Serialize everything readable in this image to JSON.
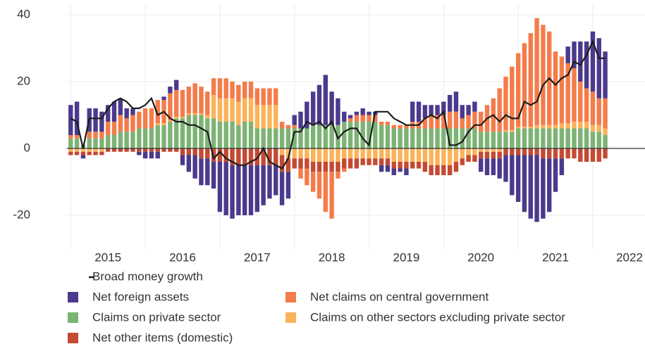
{
  "chart_data": {
    "type": "bar",
    "x": [
      2015,
      2015.0833,
      2015.1667,
      2015.25,
      2015.3333,
      2015.4167,
      2015.5,
      2015.5833,
      2015.6667,
      2015.75,
      2015.8333,
      2015.9167,
      2016,
      2016.0833,
      2016.1667,
      2016.25,
      2016.3333,
      2016.4167,
      2016.5,
      2016.5833,
      2016.6667,
      2016.75,
      2016.8333,
      2016.9167,
      2017,
      2017.0833,
      2017.1667,
      2017.25,
      2017.3333,
      2017.4167,
      2017.5,
      2017.5833,
      2017.6667,
      2017.75,
      2017.8333,
      2017.9167,
      2018,
      2018.0833,
      2018.1667,
      2018.25,
      2018.3333,
      2018.4167,
      2018.5,
      2018.5833,
      2018.6667,
      2018.75,
      2018.8333,
      2018.9167,
      2019,
      2019.0833,
      2019.1667,
      2019.25,
      2019.3333,
      2019.4167,
      2019.5,
      2019.5833,
      2019.6667,
      2019.75,
      2019.8333,
      2019.9167,
      2020,
      2020.0833,
      2020.1667,
      2020.25,
      2020.3333,
      2020.4167,
      2020.5,
      2020.5833,
      2020.6667,
      2020.75,
      2020.8333,
      2020.9167,
      2021,
      2021.0833,
      2021.1667,
      2021.25,
      2021.3333,
      2021.4167,
      2021.5,
      2021.5833,
      2021.6667,
      2021.75,
      2021.8333,
      2021.9167,
      2022,
      2022.0833,
      2022.1667
    ],
    "series": [
      {
        "name": "Net foreign assets",
        "color": "#4b3a8c",
        "values": [
          9,
          10,
          -1,
          7,
          7,
          6,
          5,
          6,
          5,
          3,
          2,
          -1,
          -2,
          -2,
          -2,
          1,
          2,
          3,
          -3,
          -5,
          -7,
          -8,
          -8,
          -8,
          -15,
          -16,
          -16,
          -15,
          -15,
          -15,
          -14,
          -12,
          -10,
          -9,
          -10,
          -8,
          3,
          5,
          8,
          10,
          12,
          15,
          10,
          8,
          3,
          1,
          1,
          2,
          1,
          1,
          -2,
          -2,
          -2,
          -1,
          -2,
          6,
          6,
          4,
          3,
          3,
          4,
          5,
          6,
          4,
          3,
          3,
          -4,
          -5,
          -5,
          -6,
          -8,
          -12,
          -14,
          -17,
          -19,
          -20,
          -18,
          -16,
          -10,
          -5,
          5,
          8,
          12,
          14,
          18,
          18,
          14
        ]
      },
      {
        "name": "Net claims on central government",
        "color": "#f47c4a",
        "values": [
          1,
          1,
          0,
          2,
          2,
          2,
          4,
          4,
          5,
          4,
          5,
          5,
          6,
          6,
          7,
          7,
          8,
          8,
          8,
          8,
          9,
          8,
          7,
          5,
          6,
          6,
          5,
          5,
          5,
          5,
          5,
          5,
          5,
          5,
          2,
          1,
          1,
          -3,
          -5,
          -6,
          -8,
          -12,
          -14,
          -2,
          -1,
          1,
          2,
          2,
          2,
          2,
          1,
          1,
          1,
          1,
          1,
          2,
          2,
          3,
          4,
          4,
          4,
          5,
          5,
          3,
          4,
          5,
          6,
          8,
          10,
          13,
          16,
          19,
          22,
          25,
          28,
          32,
          30,
          28,
          22,
          20,
          18,
          16,
          12,
          10,
          10,
          8,
          9
        ]
      },
      {
        "name": "Claims on private sector",
        "color": "#7db375",
        "values": [
          3,
          3,
          1,
          3,
          3,
          3,
          4,
          4,
          5,
          5,
          5,
          6,
          6,
          6,
          7,
          7,
          8,
          9,
          9,
          10,
          10,
          10,
          9,
          9,
          8,
          8,
          8,
          7,
          8,
          8,
          6,
          6,
          6,
          6,
          6,
          6,
          6,
          6,
          6,
          7,
          7,
          7,
          7,
          7,
          8,
          8,
          8,
          8,
          8,
          8,
          7,
          7,
          6,
          6,
          6,
          6,
          6,
          6,
          6,
          6,
          6,
          6,
          6,
          6,
          6,
          6,
          5,
          5,
          5,
          5,
          5,
          5,
          6,
          6,
          6,
          6,
          6,
          6,
          6,
          6,
          6,
          6,
          6,
          6,
          5,
          5,
          4
        ]
      },
      {
        "name": "Claims on other sectors excluding private sector",
        "color": "#fbb35a",
        "values": [
          -1,
          -1,
          -1,
          -1,
          -1,
          -1,
          0,
          0,
          0,
          0,
          0,
          0,
          0,
          0,
          0.5,
          0.5,
          0.5,
          0.5,
          0.5,
          0.5,
          0.5,
          0.5,
          1,
          7,
          7,
          7,
          7,
          7,
          7,
          7,
          7,
          7,
          7,
          7,
          -2,
          -3,
          -3,
          -3,
          -3,
          -4,
          -4,
          -4,
          -4,
          -4,
          -3,
          -3,
          -3,
          -3,
          -3,
          -3,
          -3,
          -3,
          -4,
          -4,
          -4,
          -4,
          -4,
          -4,
          -5,
          -5,
          -5,
          -5,
          -4,
          -3,
          -2,
          -2,
          -1,
          -1,
          -1,
          -1,
          0.5,
          0.5,
          0.5,
          0.5,
          0.5,
          1,
          1,
          1,
          1,
          1.5,
          1.5,
          2,
          2,
          2,
          2,
          2,
          2
        ]
      },
      {
        "name": "Net other items (domestic)",
        "color": "#c34a33",
        "values": [
          -1,
          -1,
          -1,
          -1,
          -1,
          -1,
          -1,
          -1,
          -1,
          -1,
          -1,
          -1,
          -1,
          -1,
          -1,
          -1,
          -1,
          -1,
          -2,
          -2,
          -2,
          -3,
          -3,
          -4,
          -4,
          -4,
          -5,
          -5,
          -5,
          -5,
          -5,
          -5,
          -5,
          -5,
          -5,
          -4,
          -3,
          -3,
          -3,
          -3,
          -3,
          -3,
          -3,
          -3,
          -3,
          -3,
          -3,
          -2,
          -2,
          -2,
          -2,
          -2,
          -2,
          -2,
          -2,
          -2,
          -2,
          -3,
          -3,
          -3,
          -3,
          -3,
          -3,
          -2,
          -2,
          -2,
          -2,
          -2,
          -2,
          -2,
          -2,
          -2,
          -2,
          -2,
          -2,
          -2,
          -3,
          -3,
          -3,
          -3,
          -3,
          -3,
          -4,
          -4,
          -4,
          -4,
          -3
        ]
      },
      {
        "name": "Broad money growth",
        "type": "line",
        "color": "#1c1c1c",
        "values": [
          9,
          8,
          0,
          9,
          9,
          9,
          12,
          14,
          15,
          14,
          12,
          12,
          13,
          15,
          10,
          11,
          9,
          8,
          8,
          7,
          7,
          6,
          5,
          -3,
          -1,
          -3,
          -4,
          -5,
          -5,
          -4,
          -3,
          0,
          -4,
          -5,
          -6,
          -3,
          5,
          5,
          8,
          7,
          8,
          6,
          8,
          3,
          5,
          6,
          6,
          3,
          1,
          11,
          11,
          11,
          9,
          8,
          7,
          7,
          7,
          9,
          10,
          9,
          11,
          1,
          1,
          2,
          5,
          7,
          7,
          9,
          10,
          8,
          10,
          9,
          9,
          14,
          13,
          14,
          19,
          21,
          19,
          21,
          22,
          26,
          25,
          28,
          32,
          27,
          27
        ]
      }
    ],
    "xlim": [
      2014.95,
      2022.7
    ],
    "xticks": [
      2015,
      2016,
      2017,
      2018,
      2019,
      2020,
      2021,
      2022
    ],
    "ylim": [
      -30,
      43
    ],
    "yticks": [
      -20,
      0,
      20,
      40
    ],
    "grid": true
  }
}
